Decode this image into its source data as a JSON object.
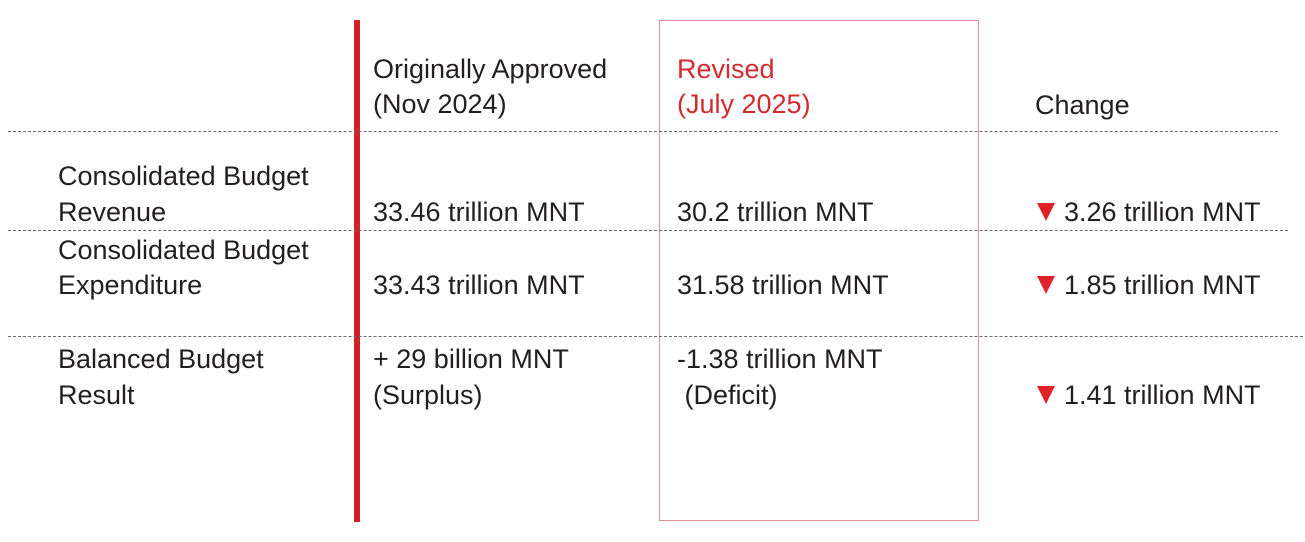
{
  "header": {
    "original_line1": "Originally Approved",
    "original_line2": "(Nov 2024)",
    "revised_line1": "Revised",
    "revised_line2": "(July 2025)",
    "change": "Change"
  },
  "rows": [
    {
      "label_line1": "Consolidated Budget",
      "label_line2": "Revenue",
      "original_line1": "33.46 trillion MNT",
      "original_line2": "",
      "revised_line1": "30.2 trillion MNT",
      "revised_line2": "",
      "change": "3.26 trillion MNT",
      "change_direction": "down"
    },
    {
      "label_line1": "Consolidated Budget",
      "label_line2": "Expenditure",
      "original_line1": "33.43 trillion MNT",
      "original_line2": "",
      "revised_line1": "31.58 trillion MNT",
      "revised_line2": "",
      "change": "1.85 trillion MNT",
      "change_direction": "down"
    },
    {
      "label_line1": "Balanced Budget",
      "label_line2": "Result",
      "original_line1": "+ 29 billion MNT",
      "original_line2": "(Surplus)",
      "revised_line1": "-1.38 trillion MNT",
      "revised_line2": " (Deficit)",
      "change": "1.41 trillion MNT",
      "change_direction": "down"
    }
  ],
  "colors": {
    "accent_red": "#d42027",
    "text": "#231f20",
    "revised_box_border": "#e3929a",
    "down_arrow": "#e02228"
  }
}
